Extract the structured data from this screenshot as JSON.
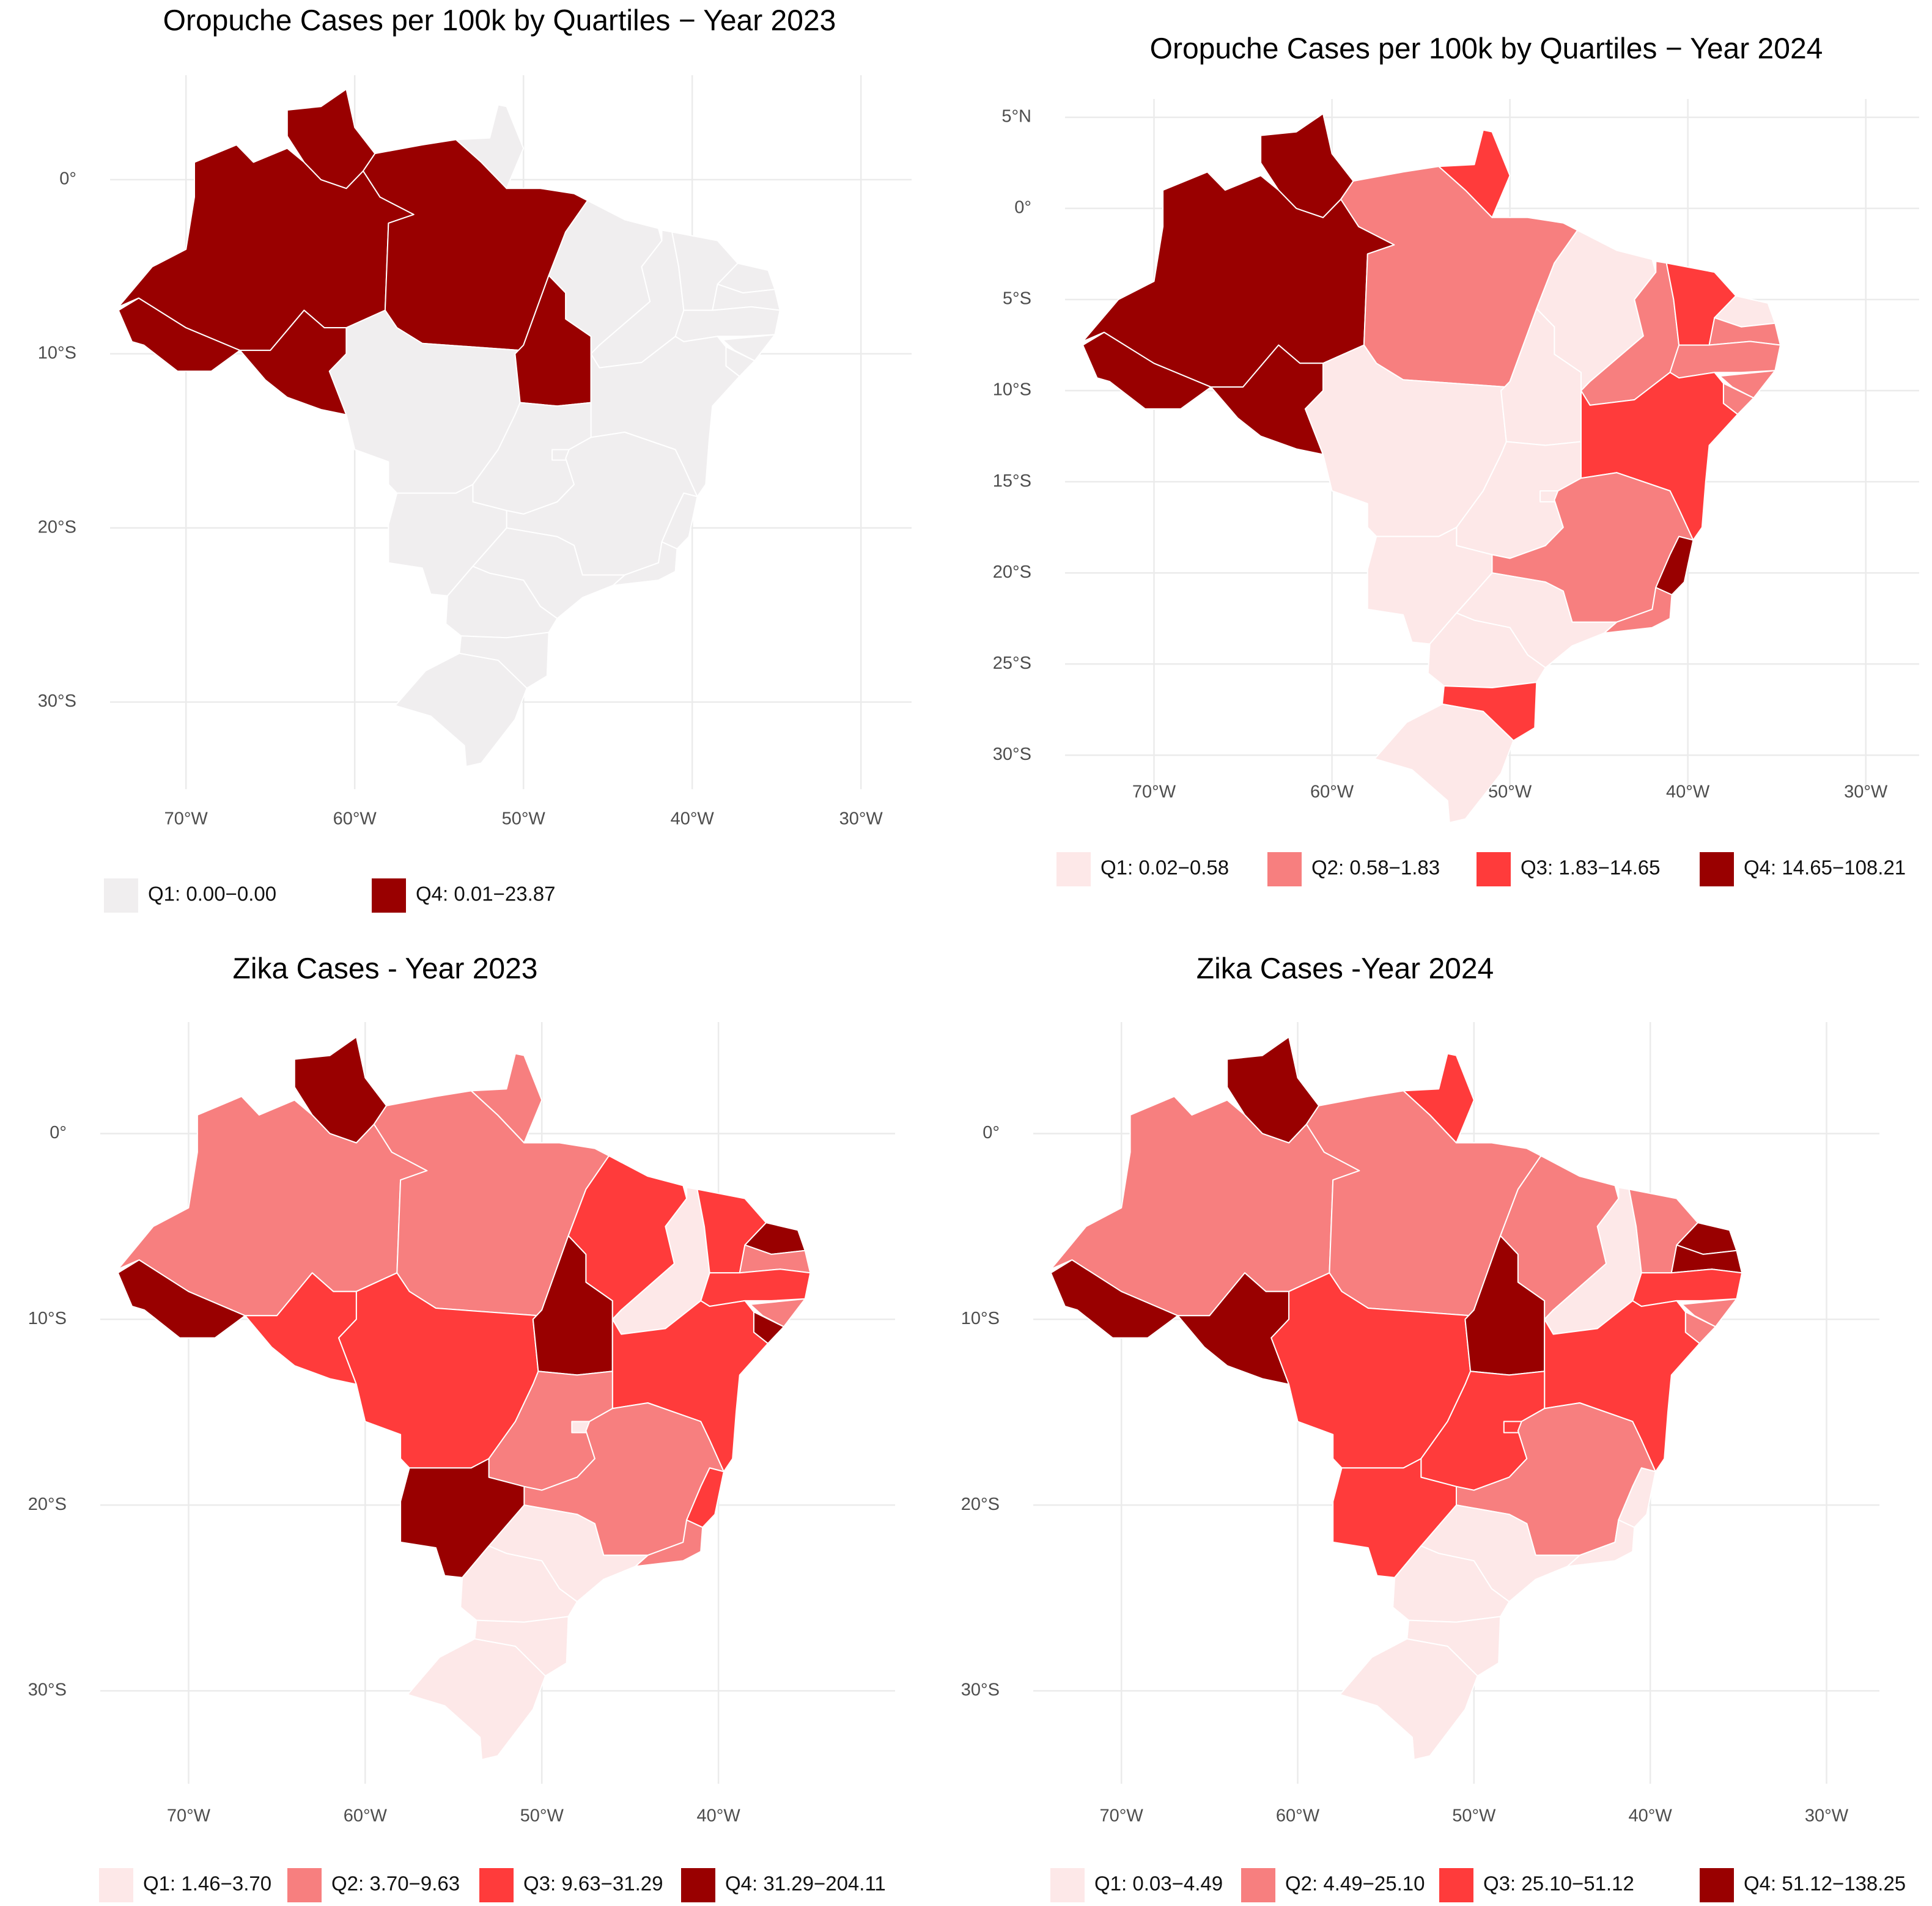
{
  "chart_data": [
    {
      "type": "map",
      "title": "Oropuche Cases per 100k by Quartiles − Year 2023",
      "xlim": [
        -74.5,
        -27
      ],
      "ylim": [
        -35,
        6
      ],
      "xticks": [
        {
          "value": -70,
          "label": "70°W"
        },
        {
          "value": -60,
          "label": "60°W"
        },
        {
          "value": -50,
          "label": "50°W"
        },
        {
          "value": -40,
          "label": "40°W"
        },
        {
          "value": -30,
          "label": "30°W"
        }
      ],
      "yticks": [
        {
          "value": 0,
          "label": "0°"
        },
        {
          "value": -10,
          "label": "10°S"
        },
        {
          "value": -20,
          "label": "20°S"
        },
        {
          "value": -30,
          "label": "30°S"
        }
      ],
      "legend": [
        {
          "label": "Q1: 0.00−0.00",
          "color": "#f0eeef"
        },
        {
          "label": "Q4: 0.01−23.87",
          "color": "#990000"
        }
      ],
      "region_colors": [
        "#990000",
        "#990000",
        "#990000",
        "#990000",
        "#f0eeef",
        "#990000",
        "#f0eeef",
        "#990000",
        "#f0eeef",
        "#f0eeef",
        "#f0eeef",
        "#f0eeef",
        "#f0eeef",
        "#f0eeef",
        "#f0eeef",
        "#f0eeef",
        "#f0eeef",
        "#f0eeef",
        "#f0eeef",
        "#f0eeef",
        "#f0eeef",
        "#f0eeef",
        "#f0eeef",
        "#f0eeef",
        "#f0eeef",
        "#f0eeef",
        "#f0eeef"
      ]
    },
    {
      "type": "map",
      "title": "Oropuche Cases per 100k by Quartiles − Year 2024",
      "xlim": [
        -75,
        -27
      ],
      "ylim": [
        -32,
        6
      ],
      "xticks": [
        {
          "value": -70,
          "label": "70°W"
        },
        {
          "value": -60,
          "label": "60°W"
        },
        {
          "value": -50,
          "label": "50°W"
        },
        {
          "value": -40,
          "label": "40°W"
        },
        {
          "value": -30,
          "label": "30°W"
        }
      ],
      "yticks": [
        {
          "value": 5,
          "label": "5°N"
        },
        {
          "value": 0,
          "label": "0°"
        },
        {
          "value": -5,
          "label": "5°S"
        },
        {
          "value": -10,
          "label": "10°S"
        },
        {
          "value": -15,
          "label": "15°S"
        },
        {
          "value": -20,
          "label": "20°S"
        },
        {
          "value": -25,
          "label": "25°S"
        },
        {
          "value": -30,
          "label": "30°S"
        }
      ],
      "legend": [
        {
          "label": "Q1: 0.02−0.58",
          "color": "#fde8e8"
        },
        {
          "label": "Q2: 0.58−1.83",
          "color": "#f77f7f"
        },
        {
          "label": "Q3: 1.83−14.65",
          "color": "#ff3b3b"
        },
        {
          "label": "Q4: 14.65−108.21",
          "color": "#990000"
        }
      ],
      "region_colors": [
        "#990000",
        "#990000",
        "#990000",
        "#f77f7f",
        "#ff3b3b",
        "#990000",
        "#fde8e8",
        "#fde8e8",
        "#fde8e8",
        "#f77f7f",
        "#ff3b3b",
        "#fde8e8",
        "#f77f7f",
        "#f77f7f",
        "#f77f7f",
        "#f77f7f",
        "#ff3b3b",
        "#fde8e8",
        "#fde8e8",
        "#f77f7f",
        "#990000",
        "#f77f7f",
        "#fde8e8",
        "#fde8e8",
        "#fde8e8",
        "#ff3b3b",
        "#fde8e8"
      ]
    },
    {
      "type": "map",
      "title": "Zika Cases - Year 2023",
      "xlim": [
        -75,
        -30
      ],
      "ylim": [
        -35,
        6
      ],
      "xticks": [
        {
          "value": -70,
          "label": "70°W"
        },
        {
          "value": -60,
          "label": "60°W"
        },
        {
          "value": -50,
          "label": "50°W"
        },
        {
          "value": -40,
          "label": "40°W"
        }
      ],
      "yticks": [
        {
          "value": 0,
          "label": "0°"
        },
        {
          "value": -10,
          "label": "10°S"
        },
        {
          "value": -20,
          "label": "20°S"
        },
        {
          "value": -30,
          "label": "30°S"
        }
      ],
      "legend": [
        {
          "label": "Q1: 1.46−3.70",
          "color": "#fde8e8"
        },
        {
          "label": "Q2: 3.70−9.63",
          "color": "#f77f7f"
        },
        {
          "label": "Q3: 9.63−31.29",
          "color": "#ff3b3b"
        },
        {
          "label": "Q4: 31.29−204.11",
          "color": "#990000"
        }
      ],
      "region_colors": [
        "#990000",
        "#f77f7f",
        "#990000",
        "#f77f7f",
        "#f77f7f",
        "#ff3b3b",
        "#ff3b3b",
        "#990000",
        "#ff3b3b",
        "#fde8e8",
        "#ff3b3b",
        "#990000",
        "#f77f7f",
        "#ff3b3b",
        "#f77f7f",
        "#990000",
        "#ff3b3b",
        "#f77f7f",
        "#fde8e8",
        "#f77f7f",
        "#ff3b3b",
        "#f77f7f",
        "#fde8e8",
        "#990000",
        "#fde8e8",
        "#fde8e8",
        "#fde8e8"
      ]
    },
    {
      "type": "map",
      "title": "Zika Cases -Year 2024",
      "xlim": [
        -75,
        -27
      ],
      "ylim": [
        -35,
        6
      ],
      "xticks": [
        {
          "value": -70,
          "label": "70°W"
        },
        {
          "value": -60,
          "label": "60°W"
        },
        {
          "value": -50,
          "label": "50°W"
        },
        {
          "value": -40,
          "label": "40°W"
        },
        {
          "value": -30,
          "label": "30°W"
        }
      ],
      "yticks": [
        {
          "value": 0,
          "label": "0°"
        },
        {
          "value": -10,
          "label": "10°S"
        },
        {
          "value": -20,
          "label": "20°S"
        },
        {
          "value": -30,
          "label": "30°S"
        }
      ],
      "legend": [
        {
          "label": "Q1: 0.03−4.49",
          "color": "#fde8e8"
        },
        {
          "label": "Q2: 4.49−25.10",
          "color": "#f77f7f"
        },
        {
          "label": "Q3: 25.10−51.12",
          "color": "#ff3b3b"
        },
        {
          "label": "Q4: 51.12−138.25",
          "color": "#990000"
        }
      ],
      "region_colors": [
        "#990000",
        "#f77f7f",
        "#990000",
        "#f77f7f",
        "#ff3b3b",
        "#990000",
        "#ff3b3b",
        "#990000",
        "#f77f7f",
        "#fde8e8",
        "#f77f7f",
        "#990000",
        "#990000",
        "#ff3b3b",
        "#f77f7f",
        "#f77f7f",
        "#ff3b3b",
        "#ff3b3b",
        "#ff3b3b",
        "#f77f7f",
        "#fde8e8",
        "#fde8e8",
        "#fde8e8",
        "#ff3b3b",
        "#fde8e8",
        "#fde8e8",
        "#fde8e8"
      ]
    }
  ]
}
